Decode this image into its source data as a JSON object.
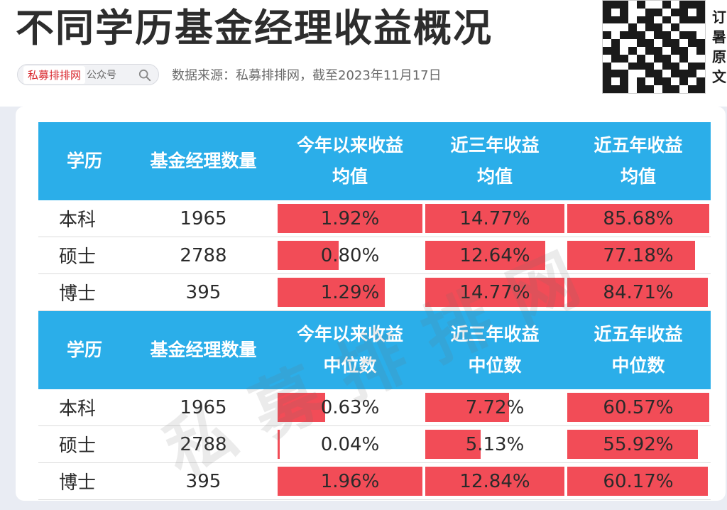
{
  "title": "不同学历基金经理收益概况",
  "search_box": {
    "brand": "私募排排网",
    "suffix": "公众号"
  },
  "source": "数据来源：私募排排网，截至2023年11月17日",
  "side_text": [
    "订",
    "暑",
    "原",
    "文"
  ],
  "watermark": "私募排排网",
  "tables": [
    {
      "headers": [
        "学历",
        "基金经理数量",
        "今年以来收益\n均值",
        "近三年收益\n均值",
        "近五年收益\n均值"
      ],
      "rows": [
        {
          "edu": "本科",
          "count": "1965",
          "ytd": "1.92%",
          "y3": "14.77%",
          "y5": "85.68%",
          "ytd_fill": 1.0,
          "y3_fill": 1.0,
          "y5_fill": 1.0
        },
        {
          "edu": "硕士",
          "count": "2788",
          "ytd": "0.80%",
          "y3": "12.64%",
          "y5": "77.18%",
          "ytd_fill": 0.42,
          "y3_fill": 0.86,
          "y5_fill": 0.9
        },
        {
          "edu": "博士",
          "count": "395",
          "ytd": "1.29%",
          "y3": "14.77%",
          "y5": "84.71%",
          "ytd_fill": 0.74,
          "y3_fill": 1.0,
          "y5_fill": 0.99
        }
      ]
    },
    {
      "headers": [
        "学历",
        "基金经理数量",
        "今年以来收益\n中位数",
        "近三年收益\n中位数",
        "近五年收益\n中位数"
      ],
      "rows": [
        {
          "edu": "本科",
          "count": "1965",
          "ytd": "0.63%",
          "y3": "7.72%",
          "y5": "60.57%",
          "ytd_fill": 0.33,
          "y3_fill": 0.6,
          "y5_fill": 1.0
        },
        {
          "edu": "硕士",
          "count": "2788",
          "ytd": "0.04%",
          "y3": "5.13%",
          "y5": "55.92%",
          "ytd_fill": 0.02,
          "y3_fill": 0.4,
          "y5_fill": 0.92
        },
        {
          "edu": "博士",
          "count": "395",
          "ytd": "1.96%",
          "y3": "12.84%",
          "y5": "60.17%",
          "ytd_fill": 1.0,
          "y3_fill": 1.0,
          "y5_fill": 0.99
        }
      ]
    }
  ],
  "colors": {
    "header_bg": "#2baee9",
    "bar": "#f24c57",
    "title": "#2d2d2d"
  }
}
